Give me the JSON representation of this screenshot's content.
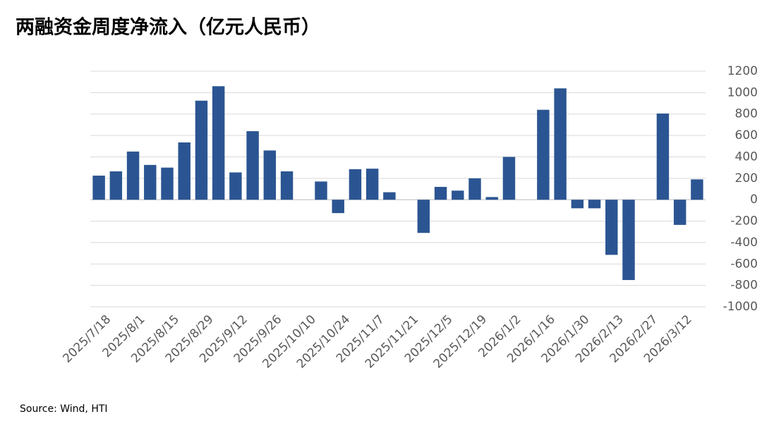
{
  "chart_data": {
    "type": "bar",
    "title": "两融资金周度净流入（亿元人民币）",
    "source": "Source: Wind, HTI",
    "categories": [
      "2025/7/18",
      null,
      "2025/8/1",
      null,
      "2025/8/15",
      null,
      "2025/8/29",
      null,
      "2025/9/12",
      null,
      "2025/9/26",
      null,
      "2025/10/10",
      null,
      "2025/10/24",
      null,
      "2025/11/7",
      null,
      "2025/11/21",
      null,
      "2025/12/5",
      null,
      "2025/12/19",
      null,
      "2026/1/2",
      null,
      "2026/1/16",
      null,
      "2026/1/30",
      null,
      "2026/2/13",
      null,
      "2026/2/27",
      null,
      "2026/3/12",
      null
    ],
    "values": [
      225,
      265,
      450,
      325,
      300,
      535,
      925,
      1060,
      255,
      640,
      460,
      265,
      0,
      170,
      -125,
      285,
      290,
      70,
      0,
      -310,
      120,
      85,
      200,
      25,
      400,
      0,
      840,
      1040,
      -80,
      -80,
      -515,
      -750,
      0,
      805,
      -235,
      190
    ],
    "color": "#2b5592",
    "ylim": [
      -1000,
      1200
    ],
    "yticks": [
      -1000,
      -800,
      -600,
      -400,
      -200,
      0,
      200,
      400,
      600,
      800,
      1000,
      1200
    ],
    "grid": true
  }
}
